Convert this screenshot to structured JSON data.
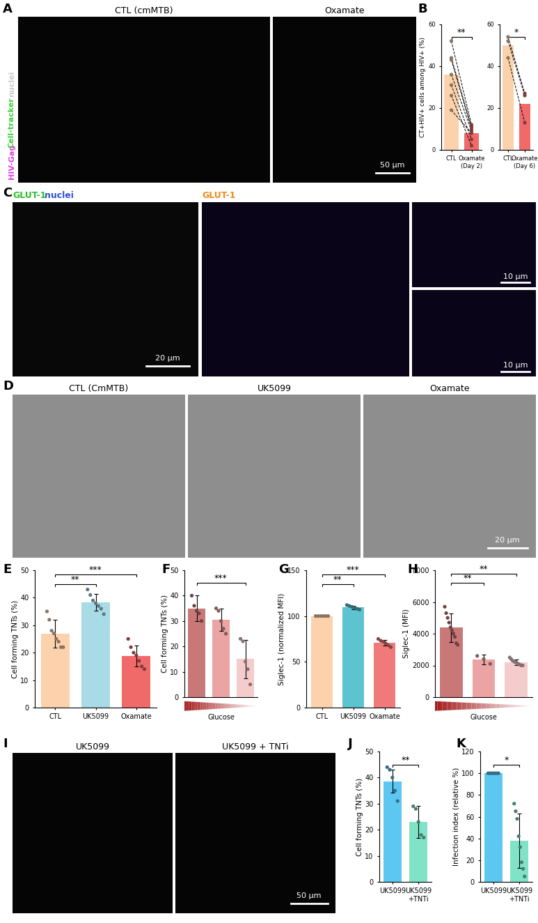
{
  "panel_labels": [
    "A",
    "B",
    "C",
    "D",
    "E",
    "F",
    "G",
    "H",
    "I",
    "J",
    "K"
  ],
  "images": [
    {
      "caption": "CTL (cmMTB)",
      "channels": [
        {
          "text": "HIV-Gag",
          "color": "#e040e0"
        },
        {
          "text": "Cell-tracker",
          "color": "#3ed13e"
        },
        {
          "text": "nuclei",
          "color": "#cccccc"
        }
      ]
    },
    {
      "caption": "Oxamate",
      "scale_bar": "50 μm"
    },
    {
      "channels": [
        {
          "text": "GLUT-1",
          "color": "#2fbf2f"
        },
        {
          "text": "nuclei",
          "color": "#2f4fd6"
        }
      ],
      "scale_bar": "20 μm"
    },
    {
      "channels": [
        {
          "text": "GLUT-1",
          "color": "#f08a1c"
        }
      ]
    },
    {
      "scale_bar": "10 μm"
    },
    {
      "scale_bar": "10 μm"
    },
    {
      "caption": "CTL (CmMTB)"
    },
    {
      "caption": "UK5099"
    },
    {
      "caption": "Oxamate",
      "scale_bar": "20 μm"
    },
    {
      "caption": "UK5099"
    },
    {
      "caption": "UK5099 + TNTi",
      "scale_bar": "50 μm"
    }
  ],
  "chart_data": [
    {
      "type": "bar",
      "categories": [
        "CTL",
        "Oxamate (Day 2)"
      ],
      "values": [
        35.9,
        8.1
      ],
      "points": [
        [
          52,
          44,
          43,
          36,
          31,
          26,
          19
        ],
        [
          12,
          11,
          10,
          9,
          5,
          2,
          8
        ]
      ],
      "line_style": "dashed",
      "colors": [
        "#fcd2ad",
        "#f06a6a"
      ],
      "y_label": "CT+HIV+ cells among HIV+ (%)",
      "ylim": [
        0,
        60
      ],
      "yticks": [
        0,
        20,
        40,
        60
      ],
      "significance": [
        {
          "between": [
            0,
            1
          ],
          "text": "**"
        }
      ]
    },
    {
      "type": "bar",
      "categories": [
        "CTL",
        "Oxamate (Day 6)"
      ],
      "values": [
        50,
        22
      ],
      "points": [
        [
          54,
          52,
          44
        ],
        [
          27,
          26,
          13
        ]
      ],
      "line_style": "dashed",
      "colors": [
        "#fcd2ad",
        "#f06a6a"
      ],
      "ylim": [
        0,
        60
      ],
      "yticks": [
        0,
        20,
        40,
        60
      ],
      "significance": [
        {
          "between": [
            0,
            1
          ],
          "text": "*"
        }
      ]
    },
    {
      "type": "bar",
      "categories": [
        "CTL",
        "UK5099",
        "Oxamate"
      ],
      "values": [
        26.9,
        38.3,
        18.9
      ],
      "errors": [
        5,
        3,
        3.8
      ],
      "points": [
        [
          35,
          32,
          28,
          27,
          25,
          24,
          22,
          22
        ],
        [
          43,
          41,
          39,
          38,
          37,
          36,
          34
        ],
        [
          25,
          22,
          20,
          19,
          17,
          15,
          14
        ]
      ],
      "colors": [
        "#fcd2ad",
        "#a9dbe6",
        "#f06a6a"
      ],
      "y_label": "Cell forming TNTs (%)",
      "ylim": [
        0,
        50
      ],
      "yticks": [
        0,
        10,
        20,
        30,
        40,
        50
      ],
      "significance": [
        {
          "between": [
            0,
            1
          ],
          "text": "**"
        },
        {
          "between": [
            0,
            2
          ],
          "text": "***"
        }
      ]
    },
    {
      "type": "bar",
      "categories": [
        null,
        null,
        null
      ],
      "values": [
        35,
        30.5,
        15
      ],
      "errors": [
        5,
        4.5,
        7.5
      ],
      "points": [
        [
          40,
          36,
          34,
          33,
          30
        ],
        [
          35,
          34,
          30,
          27,
          25
        ],
        [
          23,
          22,
          14,
          11,
          5
        ]
      ],
      "colors": [
        "#c97878",
        "#eba3a3",
        "#f5cccc"
      ],
      "y_label": "Cell forming TNTs (%)",
      "x_label": "Glucose",
      "ylim": [
        0,
        50
      ],
      "yticks": [
        0,
        10,
        20,
        30,
        40,
        50
      ],
      "significance": [
        {
          "between": [
            0,
            2
          ],
          "text": "***"
        }
      ]
    },
    {
      "type": "bar",
      "categories": [
        "CTL",
        "UK5099",
        "Oxamate"
      ],
      "values": [
        100,
        109.5,
        70.7
      ],
      "errors": [
        0,
        2,
        3.3
      ],
      "points": [
        [
          100,
          100,
          100,
          100,
          100,
          100
        ],
        [
          112,
          111,
          110,
          109,
          108,
          107
        ],
        [
          75,
          73,
          72,
          70,
          68,
          66
        ]
      ],
      "colors": [
        "#fcd2ad",
        "#5cc3cf",
        "#f07a7a"
      ],
      "y_label": "Siglec-1 (normalized MFI)",
      "ylim": [
        0,
        150
      ],
      "yticks": [
        0,
        50,
        100,
        150
      ],
      "significance": [
        {
          "between": [
            0,
            1
          ],
          "text": "**"
        },
        {
          "between": [
            0,
            2
          ],
          "text": "***"
        }
      ]
    },
    {
      "type": "bar",
      "categories": [
        null,
        null,
        null
      ],
      "values": [
        4380,
        2367,
        2195
      ],
      "errors": [
        900,
        300,
        170
      ],
      "points": [
        [
          5700,
          5300,
          5000,
          4700,
          4400,
          4200,
          4000,
          3800,
          3400,
          3300
        ],
        [
          2600,
          2400,
          2100
        ],
        [
          2500,
          2400,
          2300,
          2250,
          2200,
          2150,
          2100,
          2050,
          2000,
          2000
        ]
      ],
      "colors": [
        "#c97878",
        "#eba3a3",
        "#f5cccc"
      ],
      "y_label": "Siglec-1 (MFI)",
      "x_label": "Glucose",
      "ylim": [
        0,
        8000
      ],
      "yticks": [
        0,
        2000,
        4000,
        6000,
        8000
      ],
      "significance": [
        {
          "between": [
            0,
            1
          ],
          "text": "**"
        },
        {
          "between": [
            0,
            2
          ],
          "text": "**"
        }
      ]
    },
    {
      "type": "bar",
      "categories": [
        "UK5099",
        "UK5099 +TNTi"
      ],
      "values": [
        38.6,
        23
      ],
      "errors": [
        4.5,
        6.2
      ],
      "points": [
        [
          44,
          43,
          40,
          35,
          31
        ],
        [
          29,
          28,
          23,
          18,
          17
        ]
      ],
      "colors": [
        "#5cc8f2",
        "#80e3c8"
      ],
      "y_label": "Cell forming TNTs (%)",
      "ylim": [
        0,
        50
      ],
      "yticks": [
        0,
        10,
        20,
        30,
        40,
        50
      ],
      "significance": [
        {
          "between": [
            0,
            1
          ],
          "text": "**"
        }
      ]
    },
    {
      "type": "bar",
      "categories": [
        "UK5099",
        "UK5099 +TNTi"
      ],
      "values": [
        100,
        38
      ],
      "errors": [
        0,
        25
      ],
      "points": [
        [
          100,
          100,
          100,
          100,
          100,
          100,
          100
        ],
        [
          72,
          65,
          58,
          42,
          32,
          18,
          12,
          5
        ]
      ],
      "colors": [
        "#5cc8f2",
        "#80e3c8"
      ],
      "y_label": "Infection index (relative %)",
      "ylim": [
        0,
        120
      ],
      "yticks": [
        0,
        20,
        40,
        60,
        80,
        100,
        120
      ],
      "significance": [
        {
          "between": [
            0,
            1
          ],
          "text": "*"
        }
      ]
    }
  ]
}
